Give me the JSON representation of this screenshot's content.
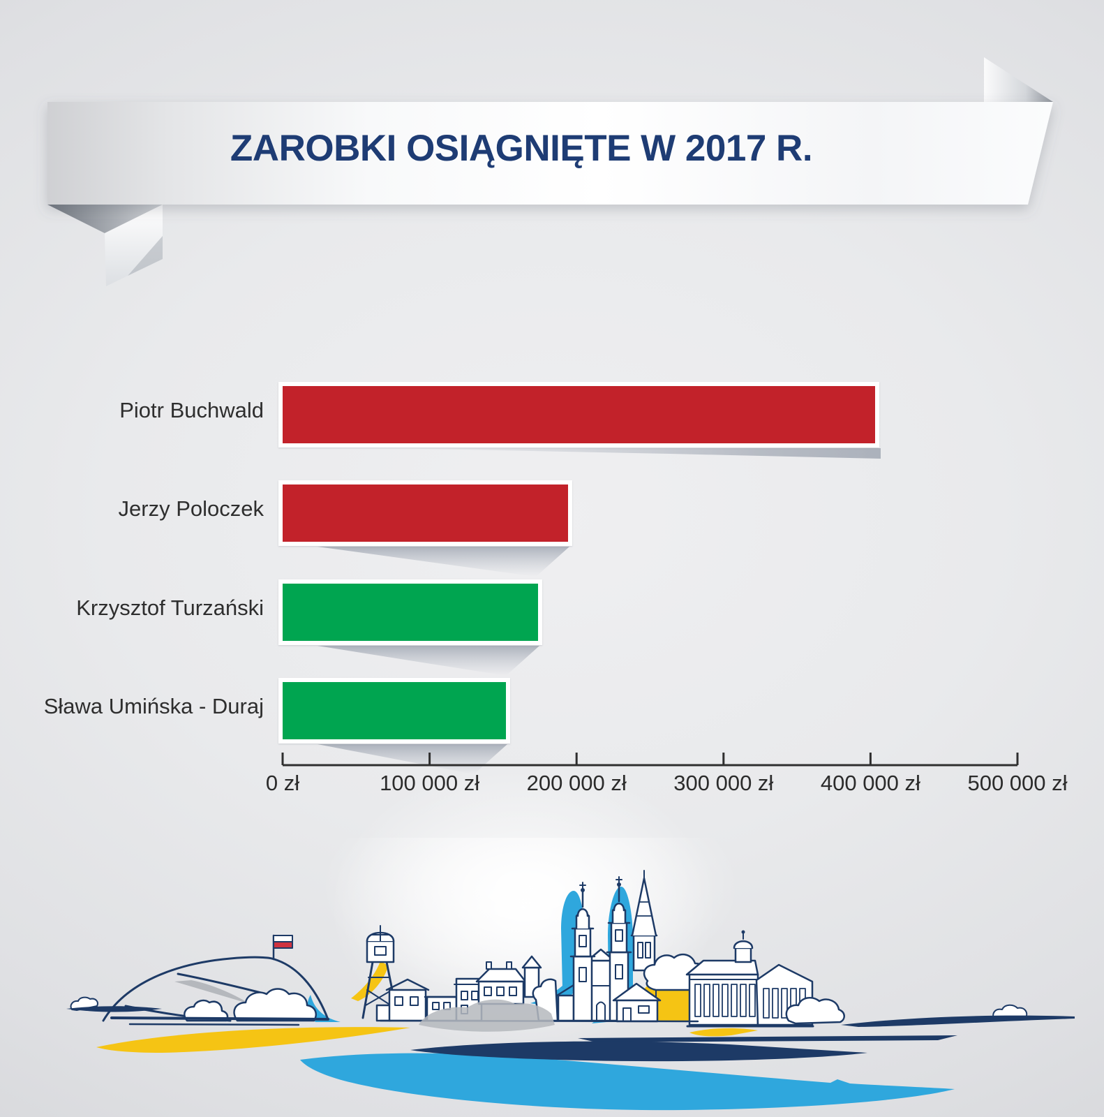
{
  "banner": {
    "title": "ZAROBKI OSIĄGNIĘTE W 2017 R."
  },
  "chart_data": {
    "type": "bar",
    "orientation": "horizontal",
    "title": "ZAROBKI OSIĄGNIĘTE W 2017 R.",
    "categories": [
      "Piotr Buchwald",
      "Jerzy Poloczek",
      "Krzysztof Turzański",
      "Sława Umińska - Duraj"
    ],
    "values": [
      403000,
      194000,
      174000,
      152000
    ],
    "bar_colors": [
      "#c2222a",
      "#c2222a",
      "#00a550",
      "#00a550"
    ],
    "xlim": [
      0,
      500000
    ],
    "x_tick_values": [
      0,
      100000,
      200000,
      300000,
      400000,
      500000
    ],
    "x_tick_labels": [
      "0 zł",
      "100 000 zł",
      "200 000 zł",
      "300 000 zł",
      "400 000 zł",
      "500 000 zł"
    ],
    "xlabel": "",
    "ylabel": "",
    "grid": false,
    "legend": null,
    "value_unit": "zł"
  },
  "colors": {
    "title_navy": "#1e3c74",
    "bar_red": "#c2222a",
    "bar_green": "#00a550",
    "axis_line": "#2f2f2f",
    "label_text": "#2e2e2e",
    "skyline_navy": "#1d3a66",
    "accent_blue": "#2fa7dd",
    "accent_yellow": "#f5c414",
    "accent_gray": "#b5b8bd",
    "flag_red": "#cf3340"
  },
  "icons": {
    "ribbon_banner": "ribbon-banner",
    "city_skyline": "city-skyline-line-art"
  }
}
